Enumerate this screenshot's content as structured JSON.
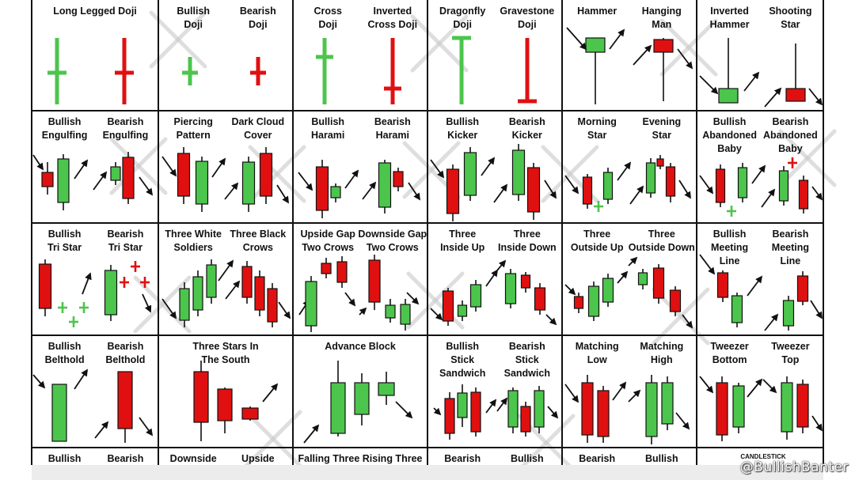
{
  "colors": {
    "bull": "#4cc54c",
    "bear": "#e01010",
    "grid": "#111111",
    "wick": "#111111"
  },
  "watermark": "@BullishBanter",
  "stamp": "CANDLESTICK",
  "cells": [
    {
      "labels": [
        [
          "Long Legged Doji"
        ],
        []
      ]
    },
    {
      "labels": [
        [
          "Bullish",
          "Doji"
        ],
        [
          "Bearish",
          "Doji"
        ]
      ]
    },
    {
      "labels": [
        [
          "Cross",
          "Doji"
        ],
        [
          "Inverted",
          "Cross Doji"
        ]
      ]
    },
    {
      "labels": [
        [
          "Dragonfly",
          "Doji"
        ],
        [
          "Gravestone",
          "Doji"
        ]
      ]
    },
    {
      "labels": [
        [
          "Hammer"
        ],
        [
          "Hanging",
          "Man"
        ]
      ]
    },
    {
      "labels": [
        [
          "Inverted",
          "Hammer"
        ],
        [
          "Shooting",
          "Star"
        ]
      ]
    },
    {
      "labels": [
        [
          "Bullish",
          "Engulfing"
        ],
        [
          "Bearish",
          "Engulfing"
        ]
      ]
    },
    {
      "labels": [
        [
          "Piercing",
          "Pattern"
        ],
        [
          "Dark Cloud",
          "Cover"
        ]
      ]
    },
    {
      "labels": [
        [
          "Bullish",
          "Harami"
        ],
        [
          "Bearish",
          "Harami"
        ]
      ]
    },
    {
      "labels": [
        [
          "Bullish",
          "Kicker"
        ],
        [
          "Bearish",
          "Kicker"
        ]
      ]
    },
    {
      "labels": [
        [
          "Morning",
          "Star"
        ],
        [
          "Evening",
          "Star"
        ]
      ]
    },
    {
      "labels": [
        [
          "Bullish",
          "Abandoned",
          "Baby"
        ],
        [
          "Bearish",
          "Abandoned",
          "Baby"
        ]
      ]
    },
    {
      "labels": [
        [
          "Bullish",
          "Tri Star"
        ],
        [
          "Bearish",
          "Tri Star"
        ]
      ]
    },
    {
      "labels": [
        [
          "Three White",
          "Soldiers"
        ],
        [
          "Three Black",
          "Crows"
        ]
      ]
    },
    {
      "labels": [
        [
          "Upside Gap",
          "Two Crows"
        ],
        [
          "Downside Gap",
          "Two Crows"
        ]
      ]
    },
    {
      "labels": [
        [
          "Three",
          "Inside Up"
        ],
        [
          "Three",
          "Inside Down"
        ]
      ]
    },
    {
      "labels": [
        [
          "Three",
          "Outside Up"
        ],
        [
          "Three",
          "Outside Down"
        ]
      ]
    },
    {
      "labels": [
        [
          "Bullish",
          "Meeting",
          "Line"
        ],
        [
          "Bearish",
          "Meeting",
          "Line"
        ]
      ]
    },
    {
      "labels": [
        [
          "Bullish",
          "Belthold"
        ],
        [
          "Bearish",
          "Belthold"
        ]
      ]
    },
    {
      "labels": [
        [
          "Three Stars In",
          "The South"
        ],
        []
      ]
    },
    {
      "labels": [
        [
          "Advance Block"
        ],
        []
      ]
    },
    {
      "labels": [
        [
          "Bullish",
          "Stick",
          "Sandwich"
        ],
        [
          "Bearish",
          "Stick",
          "Sandwich"
        ]
      ]
    },
    {
      "labels": [
        [
          "Matching",
          "Low"
        ],
        [
          "Matching",
          "High"
        ]
      ]
    },
    {
      "labels": [
        [
          "Tweezer",
          "Bottom"
        ],
        [
          "Tweezer",
          "Top"
        ]
      ]
    },
    {
      "labels": [
        [
          "Bullish"
        ],
        [
          "Bearish"
        ]
      ]
    },
    {
      "labels": [
        [
          "Downside"
        ],
        [
          "Upside"
        ]
      ]
    },
    {
      "labels": [
        [
          "Falling Three Rising Three"
        ],
        []
      ]
    },
    {
      "labels": [
        [
          "Bearish"
        ],
        [
          "Bullish"
        ]
      ]
    },
    {
      "labels": [
        [
          "Bearish"
        ],
        [
          "Bullish"
        ]
      ]
    },
    {
      "labels": [
        [],
        []
      ]
    }
  ]
}
